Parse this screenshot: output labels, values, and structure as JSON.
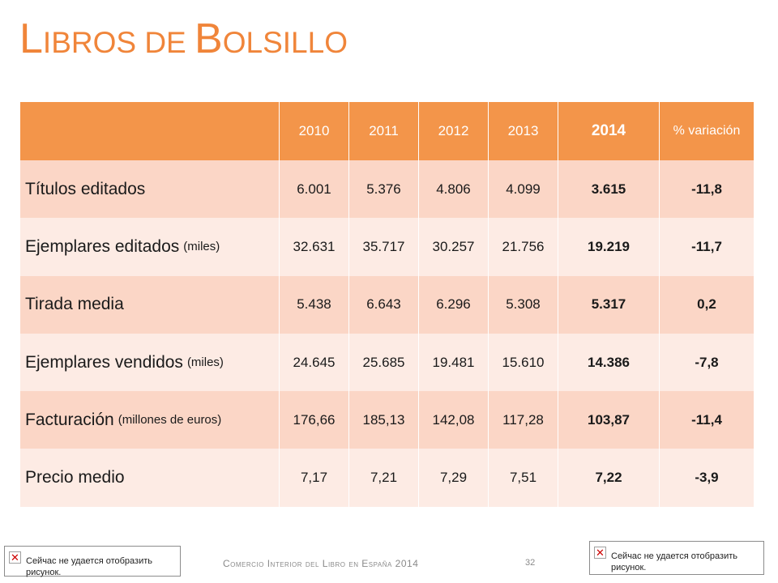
{
  "title": {
    "first_letter": "L",
    "rest1": "IBROS DE ",
    "second_letter": "B",
    "rest2": "OLSILLO"
  },
  "table": {
    "headers": [
      "2010",
      "2011",
      "2012",
      "2013",
      "2014",
      "% variación"
    ],
    "rows": [
      {
        "label": "Títulos editados",
        "sub": "",
        "values": [
          "6.001",
          "5.376",
          "4.806",
          "4.099",
          "3.615"
        ],
        "variation": "-11,8"
      },
      {
        "label": "Ejemplares editados",
        "sub": "(miles)",
        "values": [
          "32.631",
          "35.717",
          "30.257",
          "21.756",
          "19.219"
        ],
        "variation": "-11,7"
      },
      {
        "label": "Tirada media",
        "sub": "",
        "values": [
          "5.438",
          "6.643",
          "6.296",
          "5.308",
          "5.317"
        ],
        "variation": "0,2"
      },
      {
        "label": "Ejemplares vendidos",
        "sub": "(miles)",
        "values": [
          "24.645",
          "25.685",
          "19.481",
          "15.610",
          "14.386"
        ],
        "variation": "-7,8"
      },
      {
        "label": "Facturación",
        "sub": "(millones de euros)",
        "values": [
          "176,66",
          "185,13",
          "142,08",
          "117,28",
          "103,87"
        ],
        "variation": "-11,4"
      },
      {
        "label": "Precio medio",
        "sub": "",
        "values": [
          "7,17",
          "7,21",
          "7,29",
          "7,51",
          "7,22"
        ],
        "variation": "-3,9"
      }
    ]
  },
  "footer": {
    "text": "Comercio Interior del Libro en España 2014",
    "page": "32"
  },
  "broken_image_text": "Сейчас не удается отобразить рисунок.",
  "colors": {
    "accent": "#f0853a",
    "header_bg": "#f3954a",
    "row_even": "#fbd6c6",
    "row_odd": "#fdebe4"
  }
}
